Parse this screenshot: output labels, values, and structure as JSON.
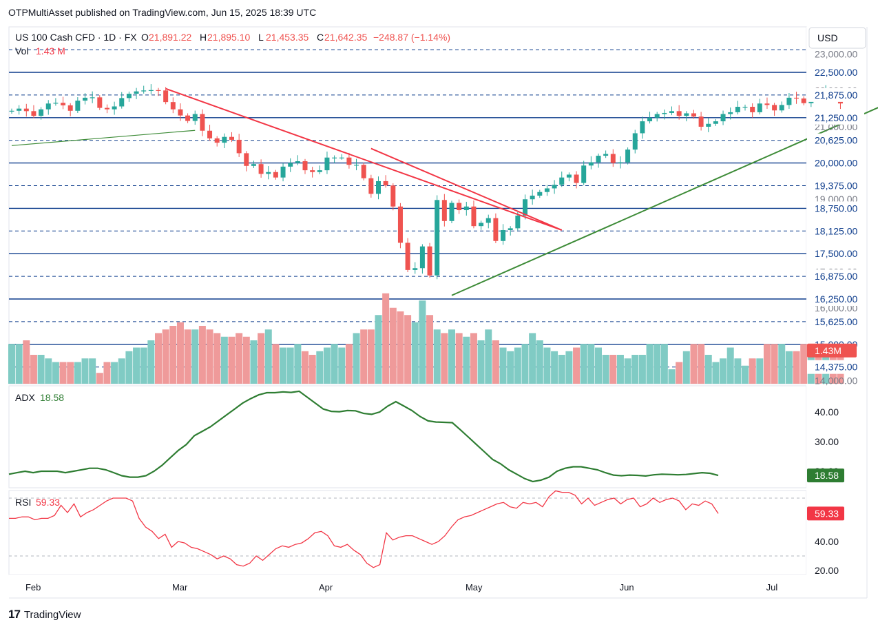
{
  "header": {
    "published": "OTPMultiAsset published on TradingView.com, Jun 15, 2025 18:39 UTC",
    "symbol": "US 100 Cash CFD · 1D · FX",
    "ohlc": [
      {
        "label": "O",
        "value": "21,891.22"
      },
      {
        "label": "H",
        "value": "21,895.10"
      },
      {
        "label": "L",
        "value": "21,453.35"
      },
      {
        "label": "C",
        "value": "21,642.35"
      }
    ],
    "change": "−248.87 (−1.14%)",
    "vol_label": "Vol",
    "vol_value": "1.43 M",
    "currency": "USD"
  },
  "footer": {
    "brand": "TradingView",
    "logo_glyph": "17"
  },
  "colors": {
    "up": "#26a69a",
    "down": "#ef5350",
    "up_vol": "#80cbc4",
    "down_vol": "#ef9a9a",
    "level": "#0d3c8c",
    "resistance": "#f23645",
    "support": "#3d8b37",
    "adx": "#2e7d32",
    "rsi": "#f23645",
    "text": "#131722"
  },
  "chart_data": [
    {
      "type": "candlestick",
      "title": "US 100 Cash CFD · 1D · FX",
      "xlabel": "",
      "ylabel": "",
      "ylim": [
        14000,
        23300
      ],
      "x_tick_labels": [
        "Feb",
        "Mar",
        "Apr",
        "May",
        "Jun",
        "Jul"
      ],
      "x_tick_index": [
        3,
        23,
        43,
        63,
        84,
        104
      ],
      "y_tick_labels": [
        "14,000.00",
        "15,000.00",
        "16,000.00",
        "17,000.00",
        "19,000.00",
        "21,000.00",
        "22,000.00",
        "23,000.00"
      ],
      "y_tick_values": [
        14000,
        15000,
        16000,
        17000,
        19000,
        21000,
        22000,
        23000
      ],
      "levels": [
        {
          "value": 22500,
          "label": "22,500.00",
          "style": "solid"
        },
        {
          "value": 21875,
          "label": "21,875.00",
          "style": "dashed"
        },
        {
          "value": 21250,
          "label": "21,250.00",
          "style": "solid"
        },
        {
          "value": 20625,
          "label": "20,625.00",
          "style": "dashed"
        },
        {
          "value": 20000,
          "label": "20,000.00",
          "style": "solid"
        },
        {
          "value": 19375,
          "label": "19,375.00",
          "style": "dashed"
        },
        {
          "value": 18750,
          "label": "18,750.00",
          "style": "solid"
        },
        {
          "value": 18125,
          "label": "18,125.00",
          "style": "dashed"
        },
        {
          "value": 17500,
          "label": "17,500.00",
          "style": "solid"
        },
        {
          "value": 16875,
          "label": "16,875.00",
          "style": "dashed"
        },
        {
          "value": 16250,
          "label": "16,250.00",
          "style": "solid"
        },
        {
          "value": 15625,
          "label": "15,625.00",
          "style": "dashed"
        },
        {
          "value": 15000,
          "label": "15,000.00",
          "style": "solid"
        },
        {
          "value": 14375,
          "label": "14,375.00",
          "style": "dashed"
        },
        {
          "value": 23125,
          "label": "",
          "style": "dashed"
        }
      ],
      "last_volume_label": "1.43M",
      "close": [
        21440,
        21500,
        21430,
        21300,
        21480,
        21640,
        21660,
        21590,
        21440,
        21720,
        21800,
        21810,
        21520,
        21480,
        21560,
        21790,
        21910,
        21975,
        22000,
        22010,
        22000,
        21680,
        21480,
        21310,
        21160,
        21350,
        20890,
        20680,
        20560,
        20720,
        20640,
        20270,
        19920,
        19970,
        19700,
        19750,
        19600,
        19900,
        20000,
        20050,
        19800,
        19750,
        19800,
        20150,
        20150,
        20150,
        19950,
        19950,
        19580,
        19150,
        19500,
        19380,
        18800,
        17800,
        17050,
        17100,
        17700,
        16900,
        18980,
        18400,
        18900,
        18700,
        18800,
        18260,
        18350,
        18480,
        17850,
        18150,
        18200,
        18550,
        19000,
        19100,
        19200,
        19300,
        19400,
        19600,
        19680,
        19450,
        19930,
        20020,
        20200,
        20250,
        20000,
        20020,
        20370,
        20820,
        21150,
        21250,
        21350,
        21380,
        21430,
        21300,
        21370,
        21280,
        21000,
        21080,
        21150,
        21350,
        21400,
        21550,
        21550,
        21400,
        21640,
        21600,
        21450,
        21600,
        21800,
        21780,
        21650,
        21950,
        21920,
        21980,
        21900,
        21642
      ],
      "open": [
        21420,
        21440,
        21500,
        21430,
        21300,
        21480,
        21640,
        21660,
        21590,
        21440,
        21720,
        21800,
        21810,
        21520,
        21480,
        21560,
        21790,
        21910,
        21975,
        22000,
        22010,
        22000,
        21680,
        21480,
        21310,
        21160,
        21350,
        20890,
        20680,
        20560,
        20720,
        20640,
        20270,
        19920,
        19970,
        19700,
        19750,
        19600,
        19900,
        20000,
        20050,
        19800,
        19750,
        19800,
        20150,
        20150,
        20150,
        19950,
        19950,
        19580,
        19150,
        19500,
        19380,
        18800,
        17800,
        17050,
        17100,
        17700,
        16900,
        18980,
        18400,
        18900,
        18700,
        18800,
        18260,
        18350,
        18480,
        17850,
        18150,
        18200,
        18550,
        19000,
        19100,
        19200,
        19300,
        19400,
        19600,
        19680,
        19450,
        19930,
        20020,
        20200,
        20250,
        20000,
        20020,
        20370,
        20820,
        21150,
        21250,
        21350,
        21380,
        21430,
        21300,
        21370,
        21280,
        21000,
        21080,
        21150,
        21350,
        21400,
        21550,
        21550,
        21400,
        21640,
        21600,
        21450,
        21600,
        21800,
        21780,
        21650,
        21950,
        21920,
        21980,
        21891
      ],
      "volume": [
        0.55,
        0.55,
        0.6,
        0.4,
        0.4,
        0.35,
        0.3,
        0.3,
        0.3,
        0.3,
        0.35,
        0.35,
        0.15,
        0.3,
        0.3,
        0.35,
        0.45,
        0.5,
        0.5,
        0.6,
        0.7,
        0.75,
        0.8,
        0.85,
        0.75,
        0.75,
        0.8,
        0.75,
        0.7,
        0.65,
        0.65,
        0.7,
        0.65,
        0.6,
        0.7,
        0.75,
        0.55,
        0.5,
        0.5,
        0.55,
        0.45,
        0.4,
        0.45,
        0.5,
        0.55,
        0.5,
        0.55,
        0.7,
        0.75,
        0.75,
        0.95,
        1.25,
        1.05,
        1.0,
        0.95,
        0.85,
        1.15,
        0.95,
        0.75,
        0.7,
        0.75,
        0.7,
        0.65,
        0.7,
        0.6,
        0.75,
        0.6,
        0.5,
        0.45,
        0.5,
        0.55,
        0.7,
        0.6,
        0.5,
        0.45,
        0.4,
        0.45,
        0.5,
        0.55,
        0.55,
        0.5,
        0.4,
        0.4,
        0.4,
        0.35,
        0.4,
        0.4,
        0.55,
        0.55,
        0.55,
        0.2,
        0.3,
        0.45,
        0.55,
        0.55,
        0.4,
        0.3,
        0.35,
        0.5,
        0.35,
        0.25,
        0.35,
        0.35,
        0.55,
        0.55,
        0.55,
        0.45,
        0.45,
        0.55,
        0.45,
        0.45,
        0.5,
        0.45,
        0.5
      ],
      "trendlines": [
        {
          "name": "",
          "color": "#f23645",
          "from": [
            21,
            22050
          ],
          "to": [
            75,
            18150
          ]
        },
        {
          "name": "",
          "color": "#f23645",
          "from": [
            49,
            20400
          ],
          "to": [
            75,
            18150
          ]
        },
        {
          "name": "",
          "color": "#3d8b37",
          "from": [
            60,
            16350
          ],
          "to": [
            124,
            22050
          ]
        },
        {
          "name": "",
          "color": "#3d8b37",
          "from": [
            0,
            20480
          ],
          "to": [
            25,
            20900
          ]
        }
      ]
    },
    {
      "type": "line",
      "title": "ADX",
      "series": [
        {
          "name": "ADX",
          "current": "18.58",
          "values": [
            19,
            19.5,
            20,
            19.5,
            20,
            20,
            20,
            19.5,
            20,
            20.5,
            21,
            21,
            20.5,
            19.5,
            18.5,
            18,
            18,
            18.5,
            20,
            22,
            24.5,
            27,
            29,
            32,
            33.5,
            35,
            37,
            39,
            41,
            43,
            44.5,
            45.8,
            46.5,
            46.5,
            46.8,
            46.6,
            47,
            45,
            43,
            41,
            40.2,
            40.1,
            40.5,
            40.4,
            39.5,
            39.2,
            40,
            42,
            43.5,
            42,
            40.5,
            38.5,
            37,
            36.6,
            36.5,
            36.4,
            34,
            31.5,
            29,
            26.5,
            24,
            22.5,
            20.5,
            19,
            17.5,
            16.5,
            17,
            18,
            20,
            21,
            21.5,
            21.5,
            21,
            20.5,
            19.5,
            18.7,
            18.5,
            18.7,
            18.6,
            18.4,
            18.8,
            19,
            18.9,
            18.8,
            18.9,
            19.2,
            19.5,
            19.3,
            18.58
          ]
        }
      ],
      "ylim": [
        14,
        50
      ],
      "y_tick_labels": [
        "20.00",
        "30.00",
        "40.00"
      ],
      "y_tick_values": [
        20,
        30,
        40
      ]
    },
    {
      "type": "line",
      "title": "RSI",
      "series": [
        {
          "name": "RSI",
          "current": "59.33",
          "values": [
            56,
            56,
            57,
            57,
            55,
            56,
            56,
            58,
            65,
            60,
            66,
            57,
            60,
            62,
            65,
            68,
            70,
            70,
            70,
            68,
            56,
            50,
            47,
            42,
            45,
            36,
            40,
            39,
            36,
            35,
            33,
            31,
            28,
            30,
            28,
            24,
            23,
            25,
            30,
            27,
            31,
            35,
            37,
            36,
            38,
            39,
            42,
            46,
            47,
            44,
            37,
            36,
            38,
            34,
            31,
            25,
            22,
            24,
            46,
            41,
            43,
            44,
            44,
            42,
            40,
            38,
            40,
            44,
            50,
            55,
            57,
            58,
            60,
            62,
            64,
            66,
            67,
            64,
            63,
            67,
            66,
            67,
            64,
            71,
            75,
            74,
            74,
            72,
            66,
            70,
            65,
            67,
            69,
            70,
            66,
            69,
            70,
            64,
            66,
            70,
            67,
            69,
            70,
            68,
            62,
            66,
            65
          ],
          "tail": [
            68,
            66,
            59.33
          ]
        }
      ],
      "ylim": [
        15,
        80
      ],
      "guide_lines": [
        70,
        30
      ],
      "y_tick_labels": [
        "20.00",
        "40.00"
      ],
      "y_tick_values": [
        20,
        40
      ]
    }
  ]
}
